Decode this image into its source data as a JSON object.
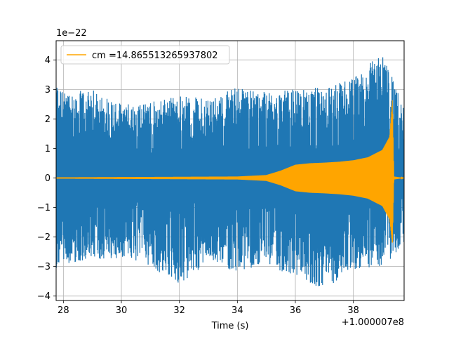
{
  "chart_data": {
    "type": "line",
    "xlabel": "Time (s)",
    "ylabel": "",
    "x_offset_label": "+1.000007e8",
    "y_scale_label": "1e−22",
    "xlim": [
      27.75,
      39.75
    ],
    "ylim": [
      -4.15,
      4.65
    ],
    "x_ticks": [
      28,
      30,
      32,
      34,
      36,
      38
    ],
    "x_tick_labels": [
      "28",
      "30",
      "32",
      "34",
      "36",
      "38"
    ],
    "y_ticks": [
      -4,
      -3,
      -2,
      -1,
      0,
      1,
      2,
      3,
      4
    ],
    "y_tick_labels": [
      "−4",
      "−3",
      "−2",
      "−1",
      "0",
      "1",
      "2",
      "3",
      "4"
    ],
    "grid": true,
    "legend_position": "top-left",
    "series": [
      {
        "name": "",
        "color": "#1f77b4",
        "kind": "noise",
        "envelope_x": [
          27.75,
          28.0,
          29.0,
          30.0,
          31.0,
          32.0,
          33.0,
          34.0,
          35.0,
          36.0,
          37.0,
          38.0,
          39.0,
          39.75
        ],
        "envelope_upper": [
          3.3,
          2.9,
          3.0,
          2.5,
          2.6,
          2.8,
          2.7,
          3.1,
          2.9,
          3.0,
          3.1,
          3.4,
          4.25,
          2.4
        ],
        "envelope_lower": [
          -3.05,
          -2.9,
          -2.8,
          -2.7,
          -3.0,
          -3.7,
          -2.8,
          -3.2,
          -3.0,
          -3.3,
          -3.8,
          -3.1,
          -3.0,
          -2.3
        ]
      },
      {
        "name": "cm =14.865513265937802",
        "color": "#ffa500",
        "kind": "chirp",
        "envelope_x": [
          27.75,
          34.0,
          35.0,
          35.5,
          36.0,
          36.5,
          37.0,
          37.5,
          38.0,
          38.5,
          39.0,
          39.25,
          39.35,
          39.4,
          39.75
        ],
        "envelope_upper": [
          0.02,
          0.05,
          0.1,
          0.25,
          0.45,
          0.5,
          0.52,
          0.55,
          0.6,
          0.7,
          0.95,
          1.4,
          2.7,
          0.05,
          0.0
        ],
        "envelope_lower": [
          -0.02,
          -0.05,
          -0.1,
          -0.25,
          -0.45,
          -0.5,
          -0.52,
          -0.55,
          -0.6,
          -0.7,
          -0.95,
          -1.4,
          -2.3,
          -0.05,
          0.0
        ]
      }
    ]
  }
}
